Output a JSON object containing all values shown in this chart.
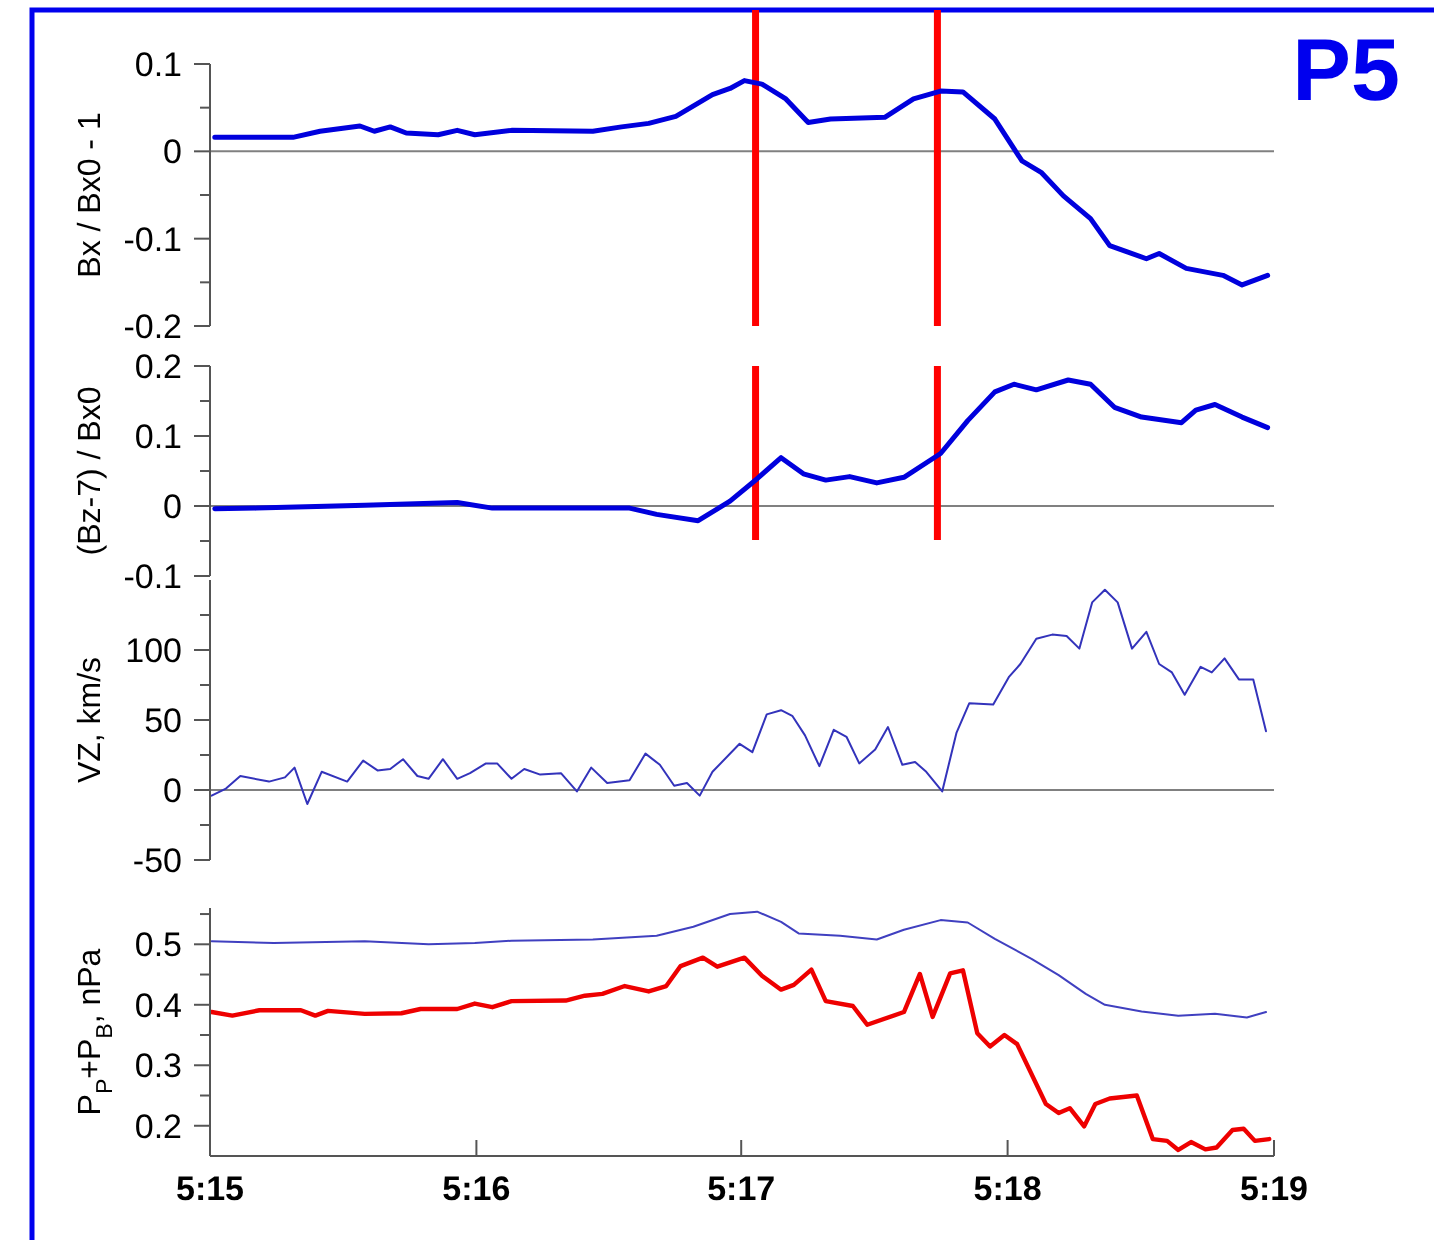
{
  "chart_data": [
    {
      "type": "line",
      "ylabel": "Bx / Bx0 - 1",
      "annotations": [
        "P5"
      ],
      "xlim": [
        5.25,
        5.3167
      ],
      "ylim": [
        -0.2,
        0.1
      ],
      "yticks": [
        -0.2,
        {
          "value": -0.15,
          "label": null
        },
        -0.1,
        {
          "value": -0.05,
          "label": null
        },
        0,
        {
          "value": 0.05,
          "label": null
        },
        0.1
      ],
      "tick_labels": "y",
      "ref_lines": [
        {
          "axis": "y",
          "value": 0,
          "color": "#808080"
        },
        {
          "axis": "x",
          "value": 5.2842,
          "color": "#ff0000"
        },
        {
          "axis": "x",
          "value": 5.2956,
          "color": "#ff0000"
        }
      ],
      "series": [
        {
          "color": "#0000dd",
          "x": [
            5.2503,
            5.2552,
            5.2569,
            5.2594,
            5.2603,
            5.2613,
            5.2623,
            5.2643,
            5.2655,
            5.2666,
            5.2689,
            5.274,
            5.2758,
            5.2775,
            5.2792,
            5.2815,
            5.2826,
            5.2835,
            5.2846,
            5.2861,
            5.2875,
            5.2889,
            5.2923,
            5.2941,
            5.2958,
            5.2972,
            5.2992,
            5.3009,
            5.3021,
            5.3035,
            5.3052,
            5.3064,
            5.3075,
            5.3087,
            5.3095,
            5.3112,
            5.3135,
            5.3147,
            5.3163
          ],
          "values": [
            0.016,
            0.016,
            0.023,
            0.029,
            0.023,
            0.028,
            0.021,
            0.019,
            0.024,
            0.019,
            0.024,
            0.023,
            0.028,
            0.032,
            0.04,
            0.065,
            0.072,
            0.081,
            0.077,
            0.06,
            0.033,
            0.037,
            0.039,
            0.06,
            0.069,
            0.068,
            0.037,
            -0.011,
            -0.024,
            -0.051,
            -0.077,
            -0.108,
            -0.115,
            -0.123,
            -0.117,
            -0.134,
            -0.142,
            -0.153,
            -0.142
          ]
        }
      ]
    },
    {
      "type": "line",
      "ylabel": "(Bz-7) / Bx0",
      "xlim": [
        5.25,
        5.3167
      ],
      "ylim": [
        -0.1,
        0.2
      ],
      "yticks": [
        -0.1,
        {
          "value": -0.05,
          "label": null
        },
        0,
        {
          "value": 0.05,
          "label": null
        },
        0.1,
        {
          "value": 0.15,
          "label": null
        },
        0.2
      ],
      "tick_labels": "y",
      "ref_lines": [
        {
          "axis": "y",
          "value": 0,
          "color": "#808080"
        },
        {
          "axis": "x",
          "value": 5.2842,
          "color": "#ff0000"
        },
        {
          "axis": "x",
          "value": 5.2956,
          "color": "#ff0000"
        }
      ],
      "series": [
        {
          "color": "#0000dd",
          "x": [
            5.2503,
            5.2529,
            5.2597,
            5.2655,
            5.2677,
            5.2763,
            5.278,
            5.2806,
            5.2826,
            5.2843,
            5.2858,
            5.2872,
            5.2886,
            5.2901,
            5.2918,
            5.2935,
            5.2958,
            5.2975,
            5.2992,
            5.3004,
            5.3018,
            5.3038,
            5.3052,
            5.3067,
            5.3084,
            5.3109,
            5.3118,
            5.313,
            5.3147,
            5.3163
          ],
          "values": [
            -0.004,
            -0.003,
            0.001,
            0.005,
            -0.003,
            -0.003,
            -0.012,
            -0.021,
            0.007,
            0.039,
            0.069,
            0.046,
            0.037,
            0.042,
            0.033,
            0.041,
            0.075,
            0.122,
            0.163,
            0.174,
            0.166,
            0.18,
            0.174,
            0.141,
            0.127,
            0.119,
            0.137,
            0.145,
            0.127,
            0.112
          ]
        }
      ]
    },
    {
      "type": "line",
      "ylabel": "VZ, km/s",
      "xlim": [
        5.25,
        5.3167
      ],
      "ylim": [
        -50,
        150
      ],
      "yticks": [
        -50,
        {
          "value": -25,
          "label": null
        },
        0,
        {
          "value": 25,
          "label": null
        },
        50,
        {
          "value": 75,
          "label": null
        },
        100,
        {
          "value": 125,
          "label": null
        }
      ],
      "tick_labels": "y",
      "ref_lines": [
        {
          "axis": "y",
          "value": 0,
          "color": "#808080"
        }
      ],
      "series": [
        {
          "color": "#3333bb",
          "x": [
            5.2501,
            5.251,
            5.2519,
            5.2537,
            5.2547,
            5.2553,
            5.2561,
            5.257,
            5.2586,
            5.2596,
            5.2605,
            5.2613,
            5.2621,
            5.263,
            5.2637,
            5.2646,
            5.2655,
            5.2663,
            5.2673,
            5.268,
            5.2689,
            5.2697,
            5.2707,
            5.272,
            5.273,
            5.2739,
            5.2749,
            5.2763,
            5.2773,
            5.2782,
            5.2791,
            5.2799,
            5.2807,
            5.2815,
            5.2832,
            5.284,
            5.2849,
            5.2858,
            5.2865,
            5.2873,
            5.2882,
            5.2891,
            5.2899,
            5.2907,
            5.2917,
            5.2925,
            5.2934,
            5.2942,
            5.2949,
            5.2959,
            5.2968,
            5.2976,
            5.2991,
            5.3001,
            5.3008,
            5.3018,
            5.3028,
            5.3037,
            5.3045,
            5.3053,
            5.3061,
            5.3069,
            5.3078,
            5.3087,
            5.3095,
            5.3103,
            5.3111,
            5.3121,
            5.3128,
            5.3136,
            5.3145,
            5.3154,
            5.3162
          ],
          "values": [
            -4,
            1,
            10,
            6,
            9,
            16,
            -10,
            13,
            6,
            21,
            14,
            15,
            22,
            10,
            8,
            22,
            8,
            12,
            19,
            19,
            8,
            15,
            11,
            12,
            -1,
            16,
            5,
            7,
            26,
            18,
            3,
            5,
            -4,
            13,
            33,
            27,
            54,
            57,
            53,
            39,
            17,
            43,
            38,
            19,
            29,
            45,
            18,
            20,
            13,
            -1,
            41,
            62,
            61,
            81,
            90,
            108,
            111,
            110,
            101,
            134,
            143,
            134,
            101,
            113,
            90,
            84,
            68,
            88,
            84,
            94,
            79,
            79,
            42
          ]
        }
      ]
    },
    {
      "type": "line",
      "ylabel": "P$_{P}$+P$_{B}$, nPa",
      "xlim": [
        5.25,
        5.3167
      ],
      "ylim": [
        0.15,
        0.56
      ],
      "yticks": [
        0.2,
        {
          "value": 0.25,
          "label": null
        },
        0.3,
        {
          "value": 0.35,
          "label": null
        },
        0.4,
        {
          "value": 0.45,
          "label": null
        },
        0.5,
        {
          "value": 0.55,
          "label": null
        }
      ],
      "xticks": [
        {
          "value": 5.25,
          "label": "5:15"
        },
        {
          "value": 5.2667,
          "label": "5:16"
        },
        {
          "value": 5.2833,
          "label": "5:17"
        },
        {
          "value": 5.3,
          "label": "5:18"
        },
        {
          "value": 5.3167,
          "label": "5:19"
        }
      ],
      "series": [
        {
          "color": "#4040c0",
          "x": [
            5.2501,
            5.254,
            5.2597,
            5.2637,
            5.2666,
            5.2689,
            5.274,
            5.278,
            5.2803,
            5.2826,
            5.2843,
            5.2858,
            5.2869,
            5.2895,
            5.2918,
            5.2935,
            5.2958,
            5.2975,
            5.2992,
            5.3015,
            5.3032,
            5.3049,
            5.3061,
            5.3084,
            5.3107,
            5.313,
            5.315,
            5.3162
          ],
          "values": [
            0.505,
            0.502,
            0.505,
            0.5,
            0.502,
            0.506,
            0.508,
            0.514,
            0.529,
            0.55,
            0.554,
            0.537,
            0.518,
            0.514,
            0.508,
            0.524,
            0.54,
            0.536,
            0.509,
            0.476,
            0.449,
            0.418,
            0.4,
            0.389,
            0.382,
            0.385,
            0.379,
            0.388
          ]
        },
        {
          "color": "#ee0000",
          "x": [
            5.2501,
            5.2514,
            5.2531,
            5.2557,
            5.2566,
            5.2574,
            5.2597,
            5.262,
            5.2632,
            5.2655,
            5.2666,
            5.2677,
            5.2689,
            5.2723,
            5.2735,
            5.2746,
            5.276,
            5.2775,
            5.2786,
            5.2795,
            5.2809,
            5.2818,
            5.2835,
            5.2846,
            5.2858,
            5.2866,
            5.2877,
            5.2886,
            5.2903,
            5.2912,
            5.2935,
            5.2945,
            5.2953,
            5.2964,
            5.2972,
            5.2981,
            5.2989,
            5.2998,
            5.3006,
            5.3024,
            5.3032,
            5.3039,
            5.3048,
            5.3055,
            5.3064,
            5.3081,
            5.3091,
            5.31,
            5.3107,
            5.3115,
            5.3124,
            5.3131,
            5.3141,
            5.3148,
            5.3155,
            5.3164
          ],
          "values": [
            0.388,
            0.382,
            0.391,
            0.391,
            0.382,
            0.39,
            0.385,
            0.386,
            0.393,
            0.393,
            0.402,
            0.396,
            0.406,
            0.407,
            0.415,
            0.418,
            0.431,
            0.422,
            0.431,
            0.464,
            0.478,
            0.463,
            0.478,
            0.448,
            0.425,
            0.433,
            0.458,
            0.406,
            0.398,
            0.367,
            0.388,
            0.451,
            0.38,
            0.452,
            0.457,
            0.353,
            0.331,
            0.35,
            0.335,
            0.236,
            0.221,
            0.229,
            0.199,
            0.236,
            0.245,
            0.25,
            0.178,
            0.175,
            0.16,
            0.173,
            0.161,
            0.164,
            0.193,
            0.195,
            0.175,
            0.178
          ]
        }
      ]
    }
  ]
}
